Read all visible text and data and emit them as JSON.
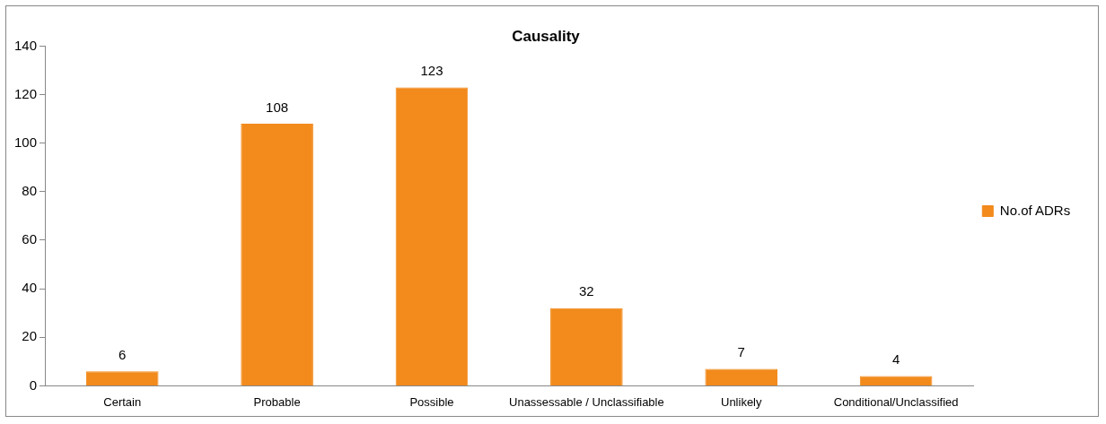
{
  "chart_data": {
    "type": "bar",
    "title": "Causality",
    "categories": [
      "Certain",
      "Probable",
      "Possible",
      "Unassessable / Unclassifiable",
      "Unlikely",
      "Conditional/Unclassified"
    ],
    "series": [
      {
        "name": "No.of ADRs",
        "color": "#f28a1c",
        "values": [
          6,
          108,
          123,
          32,
          7,
          4
        ]
      }
    ],
    "ylim": [
      0,
      140
    ],
    "yticks": [
      0,
      20,
      40,
      60,
      80,
      100,
      120,
      140
    ],
    "grid": false,
    "legend": "right",
    "data_labels": true
  }
}
